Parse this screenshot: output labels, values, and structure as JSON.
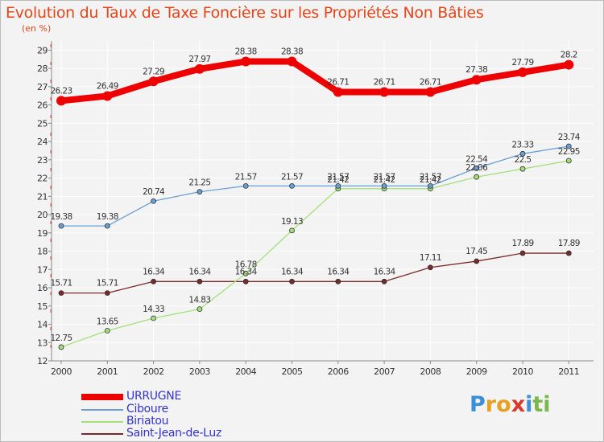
{
  "chart_data": {
    "type": "line",
    "title": "Evolution du Taux de Taxe Foncière sur les Propriétés Non Bâties",
    "ylabel": "(en %)",
    "xlabel": "",
    "x": [
      "2000",
      "2001",
      "2002",
      "2003",
      "2004",
      "2005",
      "2006",
      "2007",
      "2008",
      "2009",
      "2010",
      "2011"
    ],
    "ylim": [
      12,
      29
    ],
    "yticks": [
      "12",
      "13",
      "14",
      "15",
      "16",
      "17",
      "18",
      "19",
      "20",
      "21",
      "22",
      "23",
      "24",
      "25",
      "26",
      "27",
      "28",
      "29"
    ],
    "grid": true,
    "legend_position": "bottom-left",
    "series": [
      {
        "name": "URRUGNE",
        "color": "#ee0000",
        "values": [
          26.23,
          26.49,
          27.29,
          27.97,
          28.38,
          28.38,
          26.71,
          26.71,
          26.71,
          27.38,
          27.79,
          28.2
        ],
        "labels": [
          "26.23",
          "26.49",
          "27.29",
          "27.97",
          "28.38",
          "28.38",
          "26.71",
          "26.71",
          "26.71",
          "27.38",
          "27.79",
          "28.2"
        ]
      },
      {
        "name": "Ciboure",
        "color": "#6a9fd4",
        "values": [
          19.38,
          19.38,
          20.74,
          21.25,
          21.57,
          21.57,
          21.57,
          21.57,
          21.57,
          22.54,
          23.33,
          23.74
        ],
        "labels": [
          "19.38",
          "19.38",
          "20.74",
          "21.25",
          "21.57",
          "21.57",
          "21.57",
          "21.57",
          "21.57",
          "22.54",
          "23.33",
          "23.74"
        ]
      },
      {
        "name": "Biriatou",
        "color": "#a3e07a",
        "values": [
          12.75,
          13.65,
          14.33,
          14.83,
          16.78,
          19.13,
          21.42,
          21.42,
          21.42,
          22.06,
          22.5,
          22.95
        ],
        "labels": [
          "12.75",
          "13.65",
          "14.33",
          "14.83",
          "16.78",
          "19.13",
          "21.42",
          "21.42",
          "21.42",
          "22.06",
          "22.5",
          "22.95"
        ]
      },
      {
        "name": "Saint-Jean-de-Luz",
        "color": "#7a2a2a",
        "values": [
          15.71,
          15.71,
          16.34,
          16.34,
          16.34,
          16.34,
          16.34,
          16.34,
          17.11,
          17.45,
          17.89,
          17.89
        ],
        "labels": [
          "15.71",
          "15.71",
          "16.34",
          "16.34",
          "16.34",
          "16.34",
          "16.34",
          "16.34",
          "17.11",
          "17.45",
          "17.89",
          "17.89"
        ]
      }
    ]
  },
  "logo": {
    "text": "Proxiti",
    "letters": [
      "P",
      "r",
      "o",
      "x",
      "i",
      "t",
      "i"
    ],
    "colors": [
      "#3a8fd8",
      "#e8a020",
      "#e8a020",
      "#d83a2a",
      "#3a8fd8",
      "#7ab84a",
      "#7ab84a"
    ]
  }
}
